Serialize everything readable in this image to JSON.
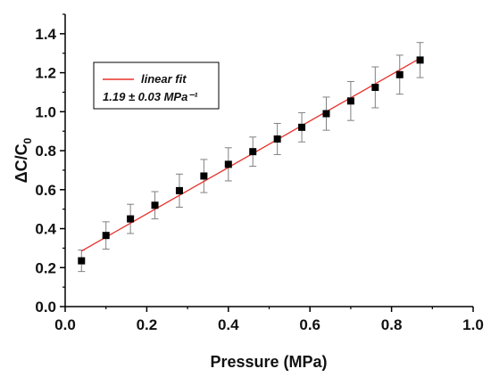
{
  "chart_data": {
    "type": "scatter",
    "xlabel": "Pressure (MPa)",
    "ylabel": "ΔC/C0",
    "xlim": [
      0.0,
      1.0
    ],
    "ylim": [
      0.0,
      1.5
    ],
    "x_ticks": [
      "0.0",
      "0.2",
      "0.4",
      "0.6",
      "0.8",
      "1.0"
    ],
    "y_ticks": [
      "0.0",
      "0.2",
      "0.4",
      "0.6",
      "0.8",
      "1.0",
      "1.2",
      "1.4"
    ],
    "series": [
      {
        "x": [
          0.04,
          0.1,
          0.16,
          0.22,
          0.28,
          0.34,
          0.4,
          0.46,
          0.52,
          0.58,
          0.64,
          0.7,
          0.76,
          0.82,
          0.87
        ],
        "values": [
          0.235,
          0.365,
          0.45,
          0.52,
          0.595,
          0.67,
          0.73,
          0.795,
          0.86,
          0.92,
          0.99,
          1.055,
          1.125,
          1.19,
          1.265
        ],
        "error": [
          0.055,
          0.07,
          0.075,
          0.07,
          0.085,
          0.085,
          0.085,
          0.075,
          0.08,
          0.075,
          0.085,
          0.1,
          0.105,
          0.1,
          0.09
        ]
      }
    ],
    "fit": {
      "name": "linear fit",
      "annotation": "1.19 ± 0.03 MPa⁻¹",
      "x": [
        0.04,
        0.875
      ],
      "y": [
        0.285,
        1.28
      ]
    },
    "legend": {
      "placement": "top-left"
    },
    "grid": false
  },
  "colors": {
    "fit_line": "#e8302a",
    "marker": "#000000",
    "error_bar": "#808080",
    "axis": "#000000"
  }
}
